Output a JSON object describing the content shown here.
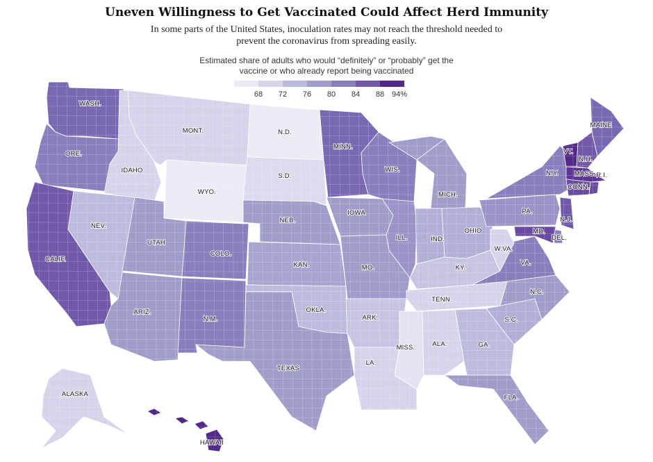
{
  "title": "Uneven Willingness to Get Vaccinated Could Affect Herd Immunity",
  "subtitle": "In some parts of the United States, inoculation rates may not reach the threshold needed to prevent the coronavirus from spreading easily.",
  "legend": {
    "title": "Estimated share of adults who would “definitely” or “probably” get the vaccine or who already report being vaccinated",
    "ticks": [
      "68",
      "72",
      "76",
      "80",
      "84",
      "88",
      "94%"
    ],
    "colors": [
      "#ecebf4",
      "#d6d4ea",
      "#bcbbdd",
      "#a19dcb",
      "#8a7fbd",
      "#7158a9",
      "#542888"
    ]
  },
  "states": [
    {
      "label": "WASH.",
      "color": "#7a68b3"
    },
    {
      "label": "ORE.",
      "color": "#8a7fbd"
    },
    {
      "label": "CALIF.",
      "color": "#7158a9"
    },
    {
      "label": "IDAHO",
      "color": "#d6d4ea"
    },
    {
      "label": "NEV.",
      "color": "#bcbbdd"
    },
    {
      "label": "MONT.",
      "color": "#d6d4ea"
    },
    {
      "label": "WYO.",
      "color": "#ecebf4"
    },
    {
      "label": "UTAH",
      "color": "#a19dcb"
    },
    {
      "label": "COLO.",
      "color": "#8a7fbd"
    },
    {
      "label": "ARIZ.",
      "color": "#a19dcb"
    },
    {
      "label": "N.M.",
      "color": "#8a7fbd"
    },
    {
      "label": "N.D.",
      "color": "#ecebf4"
    },
    {
      "label": "S.D.",
      "color": "#dcdaee"
    },
    {
      "label": "NEB.",
      "color": "#a19dcb"
    },
    {
      "label": "KAN.",
      "color": "#a8a4d0"
    },
    {
      "label": "OKLA.",
      "color": "#bcbbdd"
    },
    {
      "label": "TEXAS",
      "color": "#a19dcb"
    },
    {
      "label": "MINN.",
      "color": "#7a68b3"
    },
    {
      "label": "IOWA",
      "color": "#a19dcb"
    },
    {
      "label": "MO.",
      "color": "#a19dcb"
    },
    {
      "label": "ARK.",
      "color": "#c6c4e2"
    },
    {
      "label": "LA.",
      "color": "#d6d4ea"
    },
    {
      "label": "WIS.",
      "color": "#8a7fbd"
    },
    {
      "label": "ILL.",
      "color": "#9a94c8"
    },
    {
      "label": "MICH.",
      "color": "#a19dcb"
    },
    {
      "label": "IND.",
      "color": "#b2afd6"
    },
    {
      "label": "OHIO",
      "color": "#b2afd6"
    },
    {
      "label": "KY.",
      "color": "#c6c4e2"
    },
    {
      "label": "TENN.",
      "color": "#d6d4ea"
    },
    {
      "label": "MISS.",
      "color": "#e4e2f1"
    },
    {
      "label": "ALA.",
      "color": "#d6d4ea"
    },
    {
      "label": "GA.",
      "color": "#bcbbdd"
    },
    {
      "label": "FLA.",
      "color": "#a19dcb"
    },
    {
      "label": "S.C.",
      "color": "#b2afd6"
    },
    {
      "label": "N.C.",
      "color": "#a19dcb"
    },
    {
      "label": "VA.",
      "color": "#8a7fbd"
    },
    {
      "label": "W.VA.",
      "color": "#d6d4ea"
    },
    {
      "label": "PA.",
      "color": "#9a94c8"
    },
    {
      "label": "N.Y.",
      "color": "#8a7fbd"
    },
    {
      "label": "MAINE",
      "color": "#7a68b3"
    },
    {
      "label": "VT.",
      "color": "#542888"
    },
    {
      "label": "N.H.",
      "color": "#7158a9"
    },
    {
      "label": "MASS.",
      "color": "#5e3596"
    },
    {
      "label": "CONN.",
      "color": "#6a4aa1"
    },
    {
      "label": "R.I.",
      "color": "#6a4aa1"
    },
    {
      "label": "N.J.",
      "color": "#7158a9"
    },
    {
      "label": "DEL.",
      "color": "#8a7fbd"
    },
    {
      "label": "MD.",
      "color": "#6a4aa1"
    },
    {
      "label": "ALASKA",
      "color": "#d6d4ea"
    },
    {
      "label": "HAWAII",
      "color": "#542888"
    }
  ]
}
